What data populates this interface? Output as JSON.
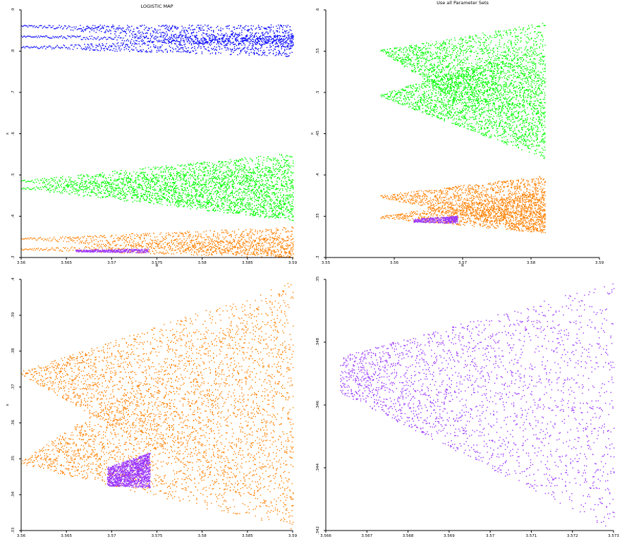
{
  "chart_data": [
    {
      "type": "scatter",
      "title": "LOGISTIC MAP",
      "xlabel": "R",
      "ylabel": "x",
      "xlim": [
        3.56,
        3.59
      ],
      "ylim": [
        0.33,
        0.93
      ],
      "xticks": [
        "3.56",
        "3.565",
        "3.57",
        "3.575",
        "3.58",
        "3.585",
        "3.59"
      ],
      "yticks": [
        ".3",
        ".4",
        ".5",
        ".6",
        ".7",
        ".8",
        ".9"
      ],
      "series": [
        {
          "color": "#0000ff",
          "bands": [
            {
              "x": [
                3.56,
                3.59
              ],
              "lo": [
                0.89,
                0.84
              ],
              "hi": [
                0.894,
                0.895
              ]
            },
            {
              "x": [
                3.56,
                3.59
              ],
              "lo": [
                0.865,
                0.84
              ],
              "hi": [
                0.868,
                0.872
              ]
            },
            {
              "x": [
                3.56,
                3.59
              ],
              "lo": [
                0.838,
                0.818
              ],
              "hi": [
                0.842,
                0.87
              ]
            }
          ]
        },
        {
          "color": "#00ff00",
          "bands": [
            {
              "x": [
                3.56,
                3.59
              ],
              "lo": [
                0.515,
                0.42
              ],
              "hi": [
                0.518,
                0.585
              ]
            },
            {
              "x": [
                3.56,
                3.59
              ],
              "lo": [
                0.497,
                0.42
              ],
              "hi": [
                0.5,
                0.56
              ]
            }
          ]
        },
        {
          "color": "#ff8000",
          "bands": [
            {
              "x": [
                3.56,
                3.59
              ],
              "lo": [
                0.375,
                0.33
              ],
              "hi": [
                0.378,
                0.405
              ]
            },
            {
              "x": [
                3.56,
                3.59
              ],
              "lo": [
                0.349,
                0.33
              ],
              "hi": [
                0.352,
                0.38
              ]
            }
          ]
        },
        {
          "color": "#9933ff",
          "bands": [
            {
              "x": [
                3.566,
                3.574
              ],
              "lo": [
                0.345,
                0.342
              ],
              "hi": [
                0.349,
                0.352
              ]
            }
          ]
        }
      ]
    },
    {
      "type": "scatter",
      "title": "Use all Parameter Sets",
      "xlabel": "R",
      "ylabel": "x",
      "xlim": [
        3.55,
        3.6
      ],
      "ylim": [
        0.3,
        0.6
      ],
      "xticks": [
        "3.55",
        "3.56",
        "3.57",
        "3.58",
        "3.59"
      ],
      "yticks": [
        ".3",
        ".35",
        ".4",
        ".45",
        ".5",
        ".55",
        ".6"
      ],
      "series": [
        {
          "color": "#00ff00",
          "bands": [
            {
              "x": [
                3.56,
                3.59
              ],
              "lo": [
                0.55,
                0.42
              ],
              "hi": [
                0.552,
                0.585
              ]
            },
            {
              "x": [
                3.56,
                3.59
              ],
              "lo": [
                0.495,
                0.42
              ],
              "hi": [
                0.498,
                0.56
              ]
            }
          ]
        },
        {
          "color": "#ff8000",
          "bands": [
            {
              "x": [
                3.56,
                3.59
              ],
              "lo": [
                0.373,
                0.33
              ],
              "hi": [
                0.376,
                0.4
              ]
            },
            {
              "x": [
                3.56,
                3.59
              ],
              "lo": [
                0.348,
                0.33
              ],
              "hi": [
                0.351,
                0.38
              ]
            }
          ]
        },
        {
          "color": "#9933ff",
          "bands": [
            {
              "x": [
                3.566,
                3.574
              ],
              "lo": [
                0.343,
                0.342
              ],
              "hi": [
                0.347,
                0.351
              ]
            }
          ]
        }
      ]
    },
    {
      "type": "scatter",
      "title": "",
      "xlabel": "",
      "ylabel": "x",
      "xlim": [
        3.56,
        3.59
      ],
      "ylim": [
        0.33,
        0.4
      ],
      "xticks": [
        "3.56",
        "3.565",
        "3.57",
        "3.575",
        "3.58",
        "3.585",
        "3.59"
      ],
      "yticks": [
        ".33",
        ".34",
        ".35",
        ".36",
        ".37",
        ".38",
        ".39",
        ".4"
      ],
      "series": [
        {
          "color": "#ff8000",
          "bands": [
            {
              "x": [
                3.56,
                3.59
              ],
              "lo": [
                0.3735,
                0.3305
              ],
              "hi": [
                0.3745,
                0.3995
              ]
            },
            {
              "x": [
                3.56,
                3.59
              ],
              "lo": [
                0.3485,
                0.3305
              ],
              "hi": [
                0.3495,
                0.3995
              ]
            }
          ]
        },
        {
          "color": "#9933ff",
          "bands": [
            {
              "x": [
                3.5695,
                3.5742
              ],
              "lo": [
                0.3425,
                0.342
              ],
              "hi": [
                0.3478,
                0.3518
              ]
            }
          ]
        }
      ]
    },
    {
      "type": "scatter",
      "title": "",
      "xlabel": "",
      "ylabel": "",
      "xlim": [
        3.5655,
        3.5735
      ],
      "ylim": [
        0.3405,
        0.3516
      ],
      "xticks": [
        "3.566",
        "3.567",
        "3.568",
        "3.569",
        "3.57",
        "3.571",
        "3.572",
        "3.573"
      ],
      "yticks": [
        ".342",
        ".344",
        ".346",
        ".348",
        ".35"
      ],
      "series": [
        {
          "color": "#9933ff",
          "bands": [
            {
              "x": [
                3.5659,
                3.5735
              ],
              "lo": [
                0.3466,
                0.3405
              ],
              "hi": [
                0.3482,
                0.3515
              ]
            }
          ]
        }
      ]
    }
  ]
}
